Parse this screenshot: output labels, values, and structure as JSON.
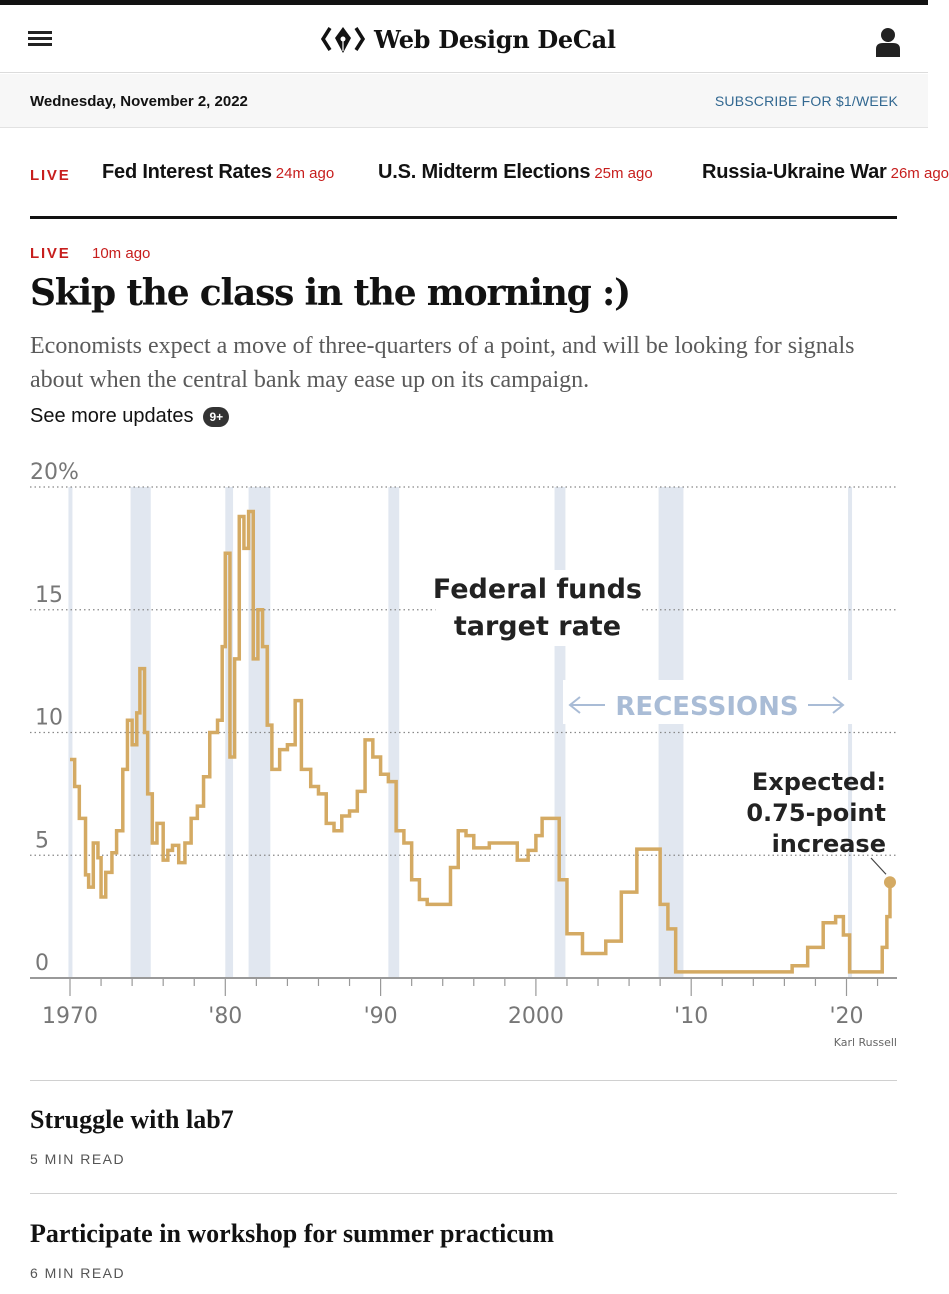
{
  "brand": {
    "name": "Web Design DeCal",
    "logo_icon": "code-pen-icon"
  },
  "header": {
    "menu_icon": "hamburger-icon",
    "user_icon": "user-icon"
  },
  "datebar": {
    "date": "Wednesday, November 2, 2022",
    "subscribe": "SUBSCRIBE FOR $1/WEEK"
  },
  "ticker": {
    "live": "LIVE",
    "items": [
      {
        "title": "Fed Interest Rates",
        "time": "24m ago"
      },
      {
        "title": "U.S. Midterm Elections",
        "time": "25m ago"
      },
      {
        "title": "Russia-Ukraine War",
        "time": "26m ago"
      }
    ]
  },
  "story": {
    "live": "LIVE",
    "time": "10m ago",
    "headline": "Skip the class in the morning :)",
    "summary": "Economists expect a move of three-quarters of a point, and will be looking for signals about when the central bank may ease up on its campaign.",
    "see_more": "See more updates",
    "badge": "9+"
  },
  "chart_data": {
    "type": "line",
    "title": "Federal funds target rate",
    "ylim": [
      0,
      20
    ],
    "xlim": [
      1970,
      2022.8
    ],
    "y_ticks": [
      0,
      5,
      10,
      15
    ],
    "y_top_label": "20%",
    "x_ticks": [
      1970,
      1980,
      1990,
      2000,
      2010,
      2020
    ],
    "x_tick_labels": [
      "1970",
      "'80",
      "'90",
      "2000",
      "'10",
      "'20"
    ],
    "grid": true,
    "line_color": "#d4aa63",
    "recession_color": "#e1e7f0",
    "recession_label": "RECESSIONS",
    "recessions": [
      [
        1969.9,
        1970.1
      ],
      [
        1973.9,
        1975.2
      ],
      [
        1980.0,
        1980.5
      ],
      [
        1981.5,
        1982.9
      ],
      [
        1990.5,
        1991.2
      ],
      [
        2001.2,
        2001.9
      ],
      [
        2007.9,
        2009.5
      ],
      [
        2020.1,
        2020.3
      ]
    ],
    "series": [
      {
        "values": [
          [
            1970.0,
            8.9
          ],
          [
            1970.3,
            7.8
          ],
          [
            1970.6,
            6.5
          ],
          [
            1971.0,
            4.2
          ],
          [
            1971.2,
            3.7
          ],
          [
            1971.5,
            5.5
          ],
          [
            1971.8,
            4.9
          ],
          [
            1972.0,
            3.3
          ],
          [
            1972.3,
            4.3
          ],
          [
            1972.7,
            5.1
          ],
          [
            1973.0,
            6.0
          ],
          [
            1973.4,
            8.5
          ],
          [
            1973.7,
            10.5
          ],
          [
            1974.0,
            9.5
          ],
          [
            1974.3,
            10.8
          ],
          [
            1974.5,
            12.6
          ],
          [
            1974.8,
            10.0
          ],
          [
            1975.0,
            7.5
          ],
          [
            1975.3,
            5.5
          ],
          [
            1975.6,
            6.3
          ],
          [
            1976.0,
            4.8
          ],
          [
            1976.3,
            5.2
          ],
          [
            1976.6,
            5.4
          ],
          [
            1977.0,
            4.7
          ],
          [
            1977.4,
            5.5
          ],
          [
            1977.8,
            6.5
          ],
          [
            1978.2,
            7.0
          ],
          [
            1978.6,
            8.2
          ],
          [
            1979.0,
            10.0
          ],
          [
            1979.5,
            10.5
          ],
          [
            1979.8,
            13.5
          ],
          [
            1980.0,
            17.3
          ],
          [
            1980.3,
            9.0
          ],
          [
            1980.6,
            13.0
          ],
          [
            1980.9,
            18.8
          ],
          [
            1981.2,
            17.5
          ],
          [
            1981.5,
            19.0
          ],
          [
            1981.8,
            13.0
          ],
          [
            1982.1,
            15.0
          ],
          [
            1982.4,
            13.5
          ],
          [
            1982.7,
            10.3
          ],
          [
            1983.0,
            8.5
          ],
          [
            1983.5,
            9.3
          ],
          [
            1984.0,
            9.5
          ],
          [
            1984.5,
            11.3
          ],
          [
            1984.9,
            8.5
          ],
          [
            1985.5,
            7.8
          ],
          [
            1986.0,
            7.5
          ],
          [
            1986.5,
            6.3
          ],
          [
            1987.0,
            6.0
          ],
          [
            1987.5,
            6.6
          ],
          [
            1988.0,
            6.8
          ],
          [
            1988.5,
            7.6
          ],
          [
            1989.0,
            9.7
          ],
          [
            1989.5,
            9.0
          ],
          [
            1990.0,
            8.3
          ],
          [
            1990.5,
            8.0
          ],
          [
            1991.0,
            6.0
          ],
          [
            1991.5,
            5.5
          ],
          [
            1992.0,
            4.0
          ],
          [
            1992.5,
            3.2
          ],
          [
            1993.0,
            3.0
          ],
          [
            1994.0,
            3.0
          ],
          [
            1994.5,
            4.5
          ],
          [
            1995.0,
            6.0
          ],
          [
            1995.5,
            5.8
          ],
          [
            1996.0,
            5.3
          ],
          [
            1997.0,
            5.5
          ],
          [
            1998.0,
            5.5
          ],
          [
            1998.8,
            4.8
          ],
          [
            1999.5,
            5.2
          ],
          [
            2000.0,
            5.8
          ],
          [
            2000.4,
            6.5
          ],
          [
            2001.0,
            6.5
          ],
          [
            2001.5,
            4.0
          ],
          [
            2002.0,
            1.8
          ],
          [
            2003.0,
            1.0
          ],
          [
            2004.0,
            1.0
          ],
          [
            2004.5,
            1.5
          ],
          [
            2005.5,
            3.5
          ],
          [
            2006.5,
            5.25
          ],
          [
            2007.5,
            5.25
          ],
          [
            2008.0,
            3.0
          ],
          [
            2008.5,
            2.0
          ],
          [
            2009.0,
            0.25
          ],
          [
            2015.8,
            0.25
          ],
          [
            2016.5,
            0.5
          ],
          [
            2017.5,
            1.25
          ],
          [
            2018.5,
            2.25
          ],
          [
            2019.3,
            2.5
          ],
          [
            2019.8,
            1.75
          ],
          [
            2020.2,
            0.25
          ],
          [
            2022.0,
            0.25
          ],
          [
            2022.3,
            1.25
          ],
          [
            2022.6,
            2.5
          ],
          [
            2022.8,
            3.9
          ]
        ]
      }
    ],
    "annotations": [
      {
        "lines": [
          "Expected:",
          "0.75-point",
          "increase"
        ],
        "year": 2022.8,
        "value": 3.9
      }
    ],
    "credit": "Karl Russell"
  },
  "articles": [
    {
      "title": "Struggle with lab7",
      "read_time": "5 MIN READ"
    },
    {
      "title": "Participate in workshop for summer practicum",
      "read_time": "6 MIN READ"
    }
  ]
}
